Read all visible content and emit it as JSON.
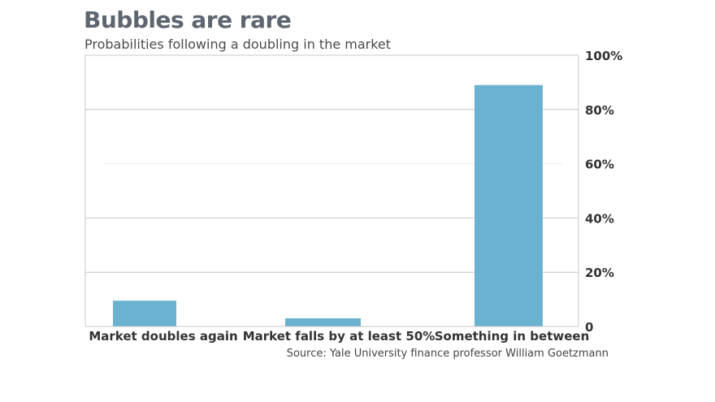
{
  "chart_data": {
    "type": "bar",
    "title": "Bubbles are rare",
    "subtitle": "Probabilities following a doubling in the market",
    "categories": [
      "Market doubles again",
      "Market falls by at least 50%",
      "Something in between"
    ],
    "values": [
      9.5,
      3,
      89
    ],
    "ylim": [
      0,
      100
    ],
    "yticks": [
      0,
      20,
      40,
      60,
      80,
      100
    ],
    "ytick_labels": [
      "0",
      "20%",
      "40%",
      "60%",
      "80%",
      "100%"
    ],
    "y_axis_side": "right",
    "grid": true,
    "bar_color": "#6ab2cf",
    "source": "Source: Yale University finance professor William Goetzmann"
  }
}
